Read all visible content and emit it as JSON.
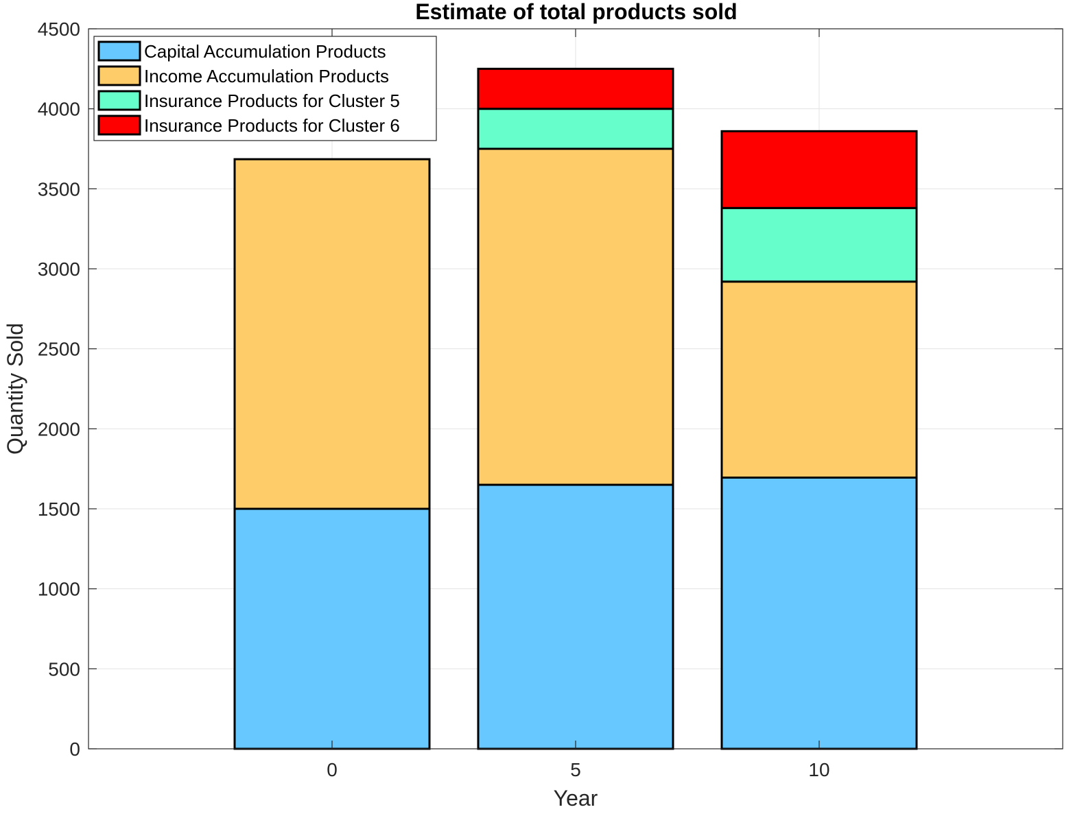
{
  "chart_data": {
    "type": "bar",
    "stacked": true,
    "title": "Estimate of total products sold",
    "xlabel": "Year",
    "ylabel": "Quantity Sold",
    "categories": [
      "0",
      "5",
      "10"
    ],
    "x": [
      0,
      5,
      10
    ],
    "xlim": [
      -5,
      15
    ],
    "ylim": [
      0,
      4500
    ],
    "yticks": [
      0,
      500,
      1000,
      1500,
      2000,
      2500,
      3000,
      3500,
      4000,
      4500
    ],
    "xticks": [
      0,
      5,
      10
    ],
    "grid": true,
    "legend_position": "top-left",
    "series": [
      {
        "name": "Capital Accumulation Products",
        "values": [
          1500,
          1650,
          1695
        ],
        "color": "#66c8ff"
      },
      {
        "name": "Income Accumulation Products",
        "values": [
          2185,
          2100,
          1225
        ],
        "color": "#ffcc6a"
      },
      {
        "name": "Insurance Products for Cluster 5",
        "values": [
          0,
          250,
          460
        ],
        "color": "#66ffcc"
      },
      {
        "name": "Insurance Products for Cluster 6",
        "values": [
          0,
          250,
          480
        ],
        "color": "#ff0000"
      }
    ]
  }
}
